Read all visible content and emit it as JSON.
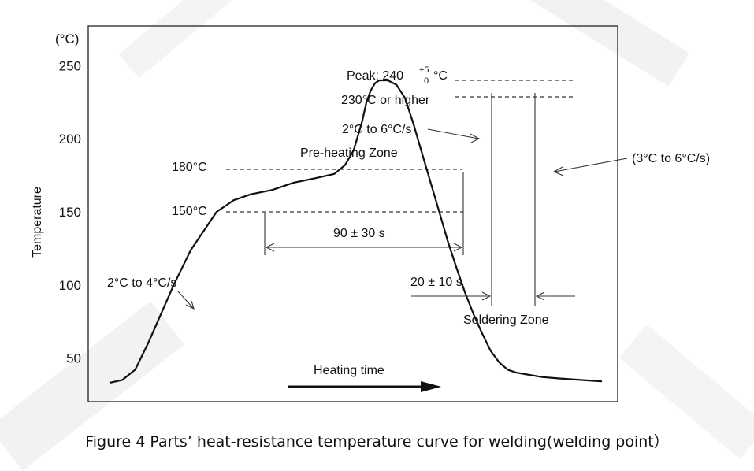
{
  "figure_caption": "Figure 4 Parts’ heat-resistance temperature curve for welding(welding point）",
  "chart_data": {
    "type": "line",
    "title": "",
    "xlabel": "",
    "ylabel": "Temperature",
    "yunit": "(°C)",
    "ylim": [
      35,
      262
    ],
    "yticks": [
      50,
      100,
      150,
      200,
      250
    ],
    "ytick_labels": [
      "50",
      "100",
      "150",
      "200",
      "250"
    ],
    "x": [
      0,
      6,
      12,
      18,
      24,
      30,
      38,
      44,
      50,
      58,
      66,
      76,
      86,
      96,
      105,
      110,
      114,
      118,
      120,
      122,
      124,
      126,
      128,
      130,
      134,
      138,
      142,
      146,
      150,
      154,
      158,
      162,
      166,
      170,
      174,
      178,
      182,
      186,
      190,
      194,
      198,
      202,
      210,
      220,
      230
    ],
    "series": [
      {
        "name": "",
        "values": [
          33,
          35,
          42,
          60,
          80,
          100,
          124,
          137,
          150,
          158,
          162,
          165,
          170,
          173,
          176,
          182,
          192,
          212,
          225,
          233,
          238,
          240,
          240,
          240,
          237,
          228,
          210,
          190,
          170,
          150,
          130,
          112,
          95,
          80,
          67,
          55,
          47,
          42,
          40,
          39,
          38,
          37,
          36,
          35,
          34
        ]
      }
    ],
    "annotations": {
      "peak": "Peak: 240",
      "peak_sup": "+5",
      "peak_sub": "0",
      "peak_unit": "°C",
      "above_230": "230°C or higher",
      "rise_rate": "2°C to 6°C/s",
      "preheat_zone": "Pre-heating Zone",
      "t180": "180°C",
      "t150": "150°C",
      "preheat_time": "90 ± 30 s",
      "initial_rate": "2°C to 4°C/s",
      "solder_time": "20 ± 10 s",
      "soldering_zone": "Soldering Zone",
      "cooling_rate": "(3°C to 6°C/s)",
      "heating_time": "Heating time"
    }
  }
}
